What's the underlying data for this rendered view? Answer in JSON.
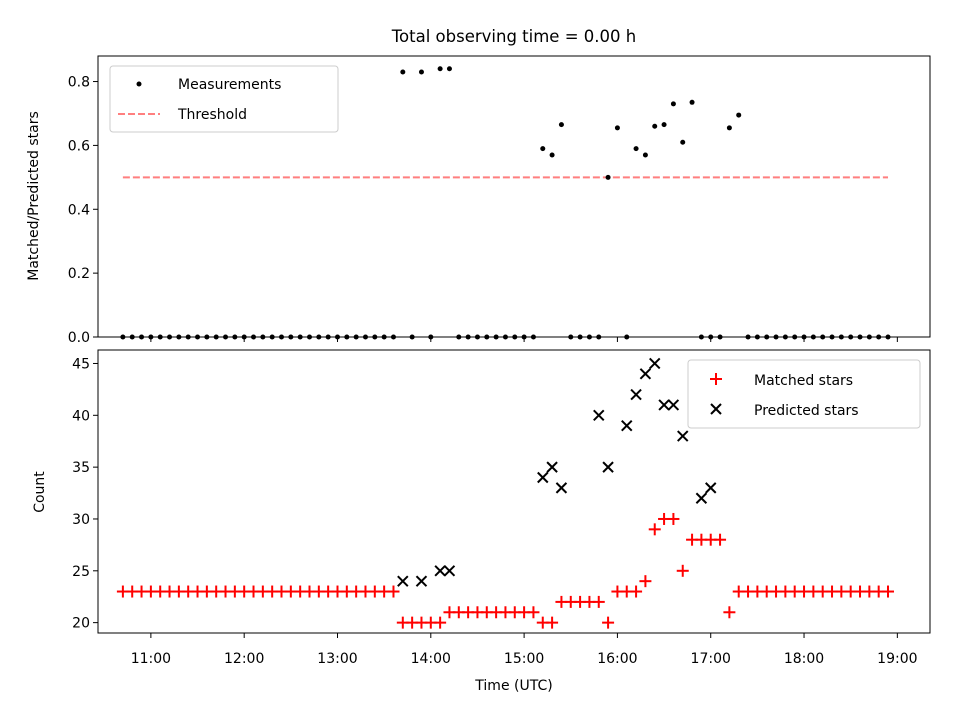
{
  "title": "Total observing time = 0.00 h",
  "chart_data": [
    {
      "type": "scatter",
      "ylabel": "Matched/Predicted stars",
      "ylim": [
        0,
        0.88
      ],
      "yticks": [
        0.0,
        0.2,
        0.4,
        0.6,
        0.8
      ],
      "ytick_labels": [
        "0.0",
        "0.2",
        "0.4",
        "0.6",
        "0.8"
      ],
      "xlim": [
        "10:26",
        "19:21"
      ],
      "legend": {
        "placement": "top-left",
        "entries": [
          "Measurements",
          "Threshold"
        ]
      },
      "series": [
        {
          "name": "Measurements",
          "marker": "dot",
          "color": "#000000",
          "x": [
            "10:42",
            "10:48",
            "10:54",
            "11:00",
            "11:06",
            "11:12",
            "11:18",
            "11:24",
            "11:30",
            "11:36",
            "11:42",
            "11:48",
            "11:54",
            "12:00",
            "12:06",
            "12:12",
            "12:18",
            "12:24",
            "12:30",
            "12:36",
            "12:42",
            "12:48",
            "12:54",
            "13:00",
            "13:06",
            "13:12",
            "13:18",
            "13:24",
            "13:30",
            "13:36",
            "13:42",
            "13:48",
            "13:54",
            "14:00",
            "14:06",
            "14:12",
            "14:18",
            "14:24",
            "14:30",
            "14:36",
            "14:42",
            "14:48",
            "14:54",
            "15:00",
            "15:06",
            "15:12",
            "15:18",
            "15:24",
            "15:30",
            "15:36",
            "15:42",
            "15:48",
            "15:54",
            "16:00",
            "16:06",
            "16:12",
            "16:18",
            "16:24",
            "16:30",
            "16:36",
            "16:42",
            "16:48",
            "16:54",
            "17:00",
            "17:06",
            "17:12",
            "17:18",
            "17:24",
            "17:30",
            "17:36",
            "17:42",
            "17:48",
            "17:54",
            "18:00",
            "18:06",
            "18:12",
            "18:18",
            "18:24",
            "18:30",
            "18:36",
            "18:42",
            "18:48",
            "18:54"
          ],
          "y": [
            0,
            0,
            0,
            0,
            0,
            0,
            0,
            0,
            0,
            0,
            0,
            0,
            0,
            0,
            0,
            0,
            0,
            0,
            0,
            0,
            0,
            0,
            0,
            0,
            0,
            0,
            0,
            0,
            0,
            0,
            0.83,
            0,
            0.83,
            0,
            0.84,
            0.84,
            0,
            0,
            0,
            0,
            0,
            0,
            0,
            0,
            0,
            0.59,
            0.57,
            0.665,
            0,
            0,
            0,
            0,
            0.5,
            0.655,
            0,
            0.59,
            0.57,
            0.66,
            0.665,
            0.73,
            0.61,
            0.735,
            0,
            0,
            0,
            0.655,
            0.695,
            0,
            0,
            0,
            0,
            0,
            0,
            0,
            0,
            0,
            0,
            0,
            0,
            0,
            0,
            0,
            0
          ]
        },
        {
          "name": "Threshold",
          "style": "dashed",
          "color": "#ff7f7f",
          "x": [
            "10:42",
            "18:54"
          ],
          "y": [
            0.5,
            0.5
          ]
        }
      ]
    },
    {
      "type": "scatter",
      "xlabel": "Time (UTC)",
      "ylabel": "Count",
      "ylim": [
        19,
        46.3
      ],
      "yticks": [
        20,
        25,
        30,
        35,
        40,
        45
      ],
      "ytick_labels": [
        "20",
        "25",
        "30",
        "35",
        "40",
        "45"
      ],
      "xlim": [
        "10:26",
        "19:21"
      ],
      "xticks": [
        "11:00",
        "12:00",
        "13:00",
        "14:00",
        "15:00",
        "16:00",
        "17:00",
        "18:00",
        "19:00"
      ],
      "xtick_labels": [
        "11:00",
        "12:00",
        "13:00",
        "14:00",
        "15:00",
        "16:00",
        "17:00",
        "18:00",
        "19:00"
      ],
      "legend": {
        "placement": "top-right",
        "entries": [
          "Matched stars",
          "Predicted stars"
        ]
      },
      "series": [
        {
          "name": "Matched stars",
          "marker": "plus",
          "color": "#ff0000",
          "x": [
            "10:42",
            "10:48",
            "10:54",
            "11:00",
            "11:06",
            "11:12",
            "11:18",
            "11:24",
            "11:30",
            "11:36",
            "11:42",
            "11:48",
            "11:54",
            "12:00",
            "12:06",
            "12:12",
            "12:18",
            "12:24",
            "12:30",
            "12:36",
            "12:42",
            "12:48",
            "12:54",
            "13:00",
            "13:06",
            "13:12",
            "13:18",
            "13:24",
            "13:30",
            "13:36",
            "13:42",
            "13:48",
            "13:54",
            "14:00",
            "14:06",
            "14:12",
            "14:18",
            "14:24",
            "14:30",
            "14:36",
            "14:42",
            "14:48",
            "14:54",
            "15:00",
            "15:06",
            "15:12",
            "15:18",
            "15:24",
            "15:30",
            "15:36",
            "15:42",
            "15:48",
            "15:54",
            "16:00",
            "16:06",
            "16:12",
            "16:18",
            "16:24",
            "16:30",
            "16:36",
            "16:42",
            "16:48",
            "16:54",
            "17:00",
            "17:06",
            "17:12",
            "17:18",
            "17:24",
            "17:30",
            "17:36",
            "17:42",
            "17:48",
            "17:54",
            "18:00",
            "18:06",
            "18:12",
            "18:18",
            "18:24",
            "18:30",
            "18:36",
            "18:42",
            "18:48",
            "18:54"
          ],
          "y": [
            23,
            23,
            23,
            23,
            23,
            23,
            23,
            23,
            23,
            23,
            23,
            23,
            23,
            23,
            23,
            23,
            23,
            23,
            23,
            23,
            23,
            23,
            23,
            23,
            23,
            23,
            23,
            23,
            23,
            23,
            20,
            20,
            20,
            20,
            20,
            21,
            21,
            21,
            21,
            21,
            21,
            21,
            21,
            21,
            21,
            20,
            20,
            22,
            22,
            22,
            22,
            22,
            20,
            23,
            23,
            23,
            24,
            29,
            30,
            30,
            25,
            28,
            28,
            28,
            28,
            21,
            23,
            23,
            23,
            23,
            23,
            23,
            23,
            23,
            23,
            23,
            23,
            23,
            23,
            23,
            23,
            23,
            23
          ]
        },
        {
          "name": "Predicted stars",
          "marker": "x",
          "color": "#000000",
          "x": [
            "13:42",
            "13:54",
            "14:06",
            "14:12",
            "15:12",
            "15:18",
            "15:24",
            "15:48",
            "15:54",
            "16:06",
            "16:12",
            "16:18",
            "16:24",
            "16:30",
            "16:36",
            "16:42",
            "16:54",
            "17:00"
          ],
          "y": [
            24,
            24,
            25,
            25,
            34,
            35,
            33,
            40,
            35,
            39,
            42,
            44,
            45,
            41,
            41,
            38,
            32,
            33
          ]
        }
      ]
    }
  ]
}
